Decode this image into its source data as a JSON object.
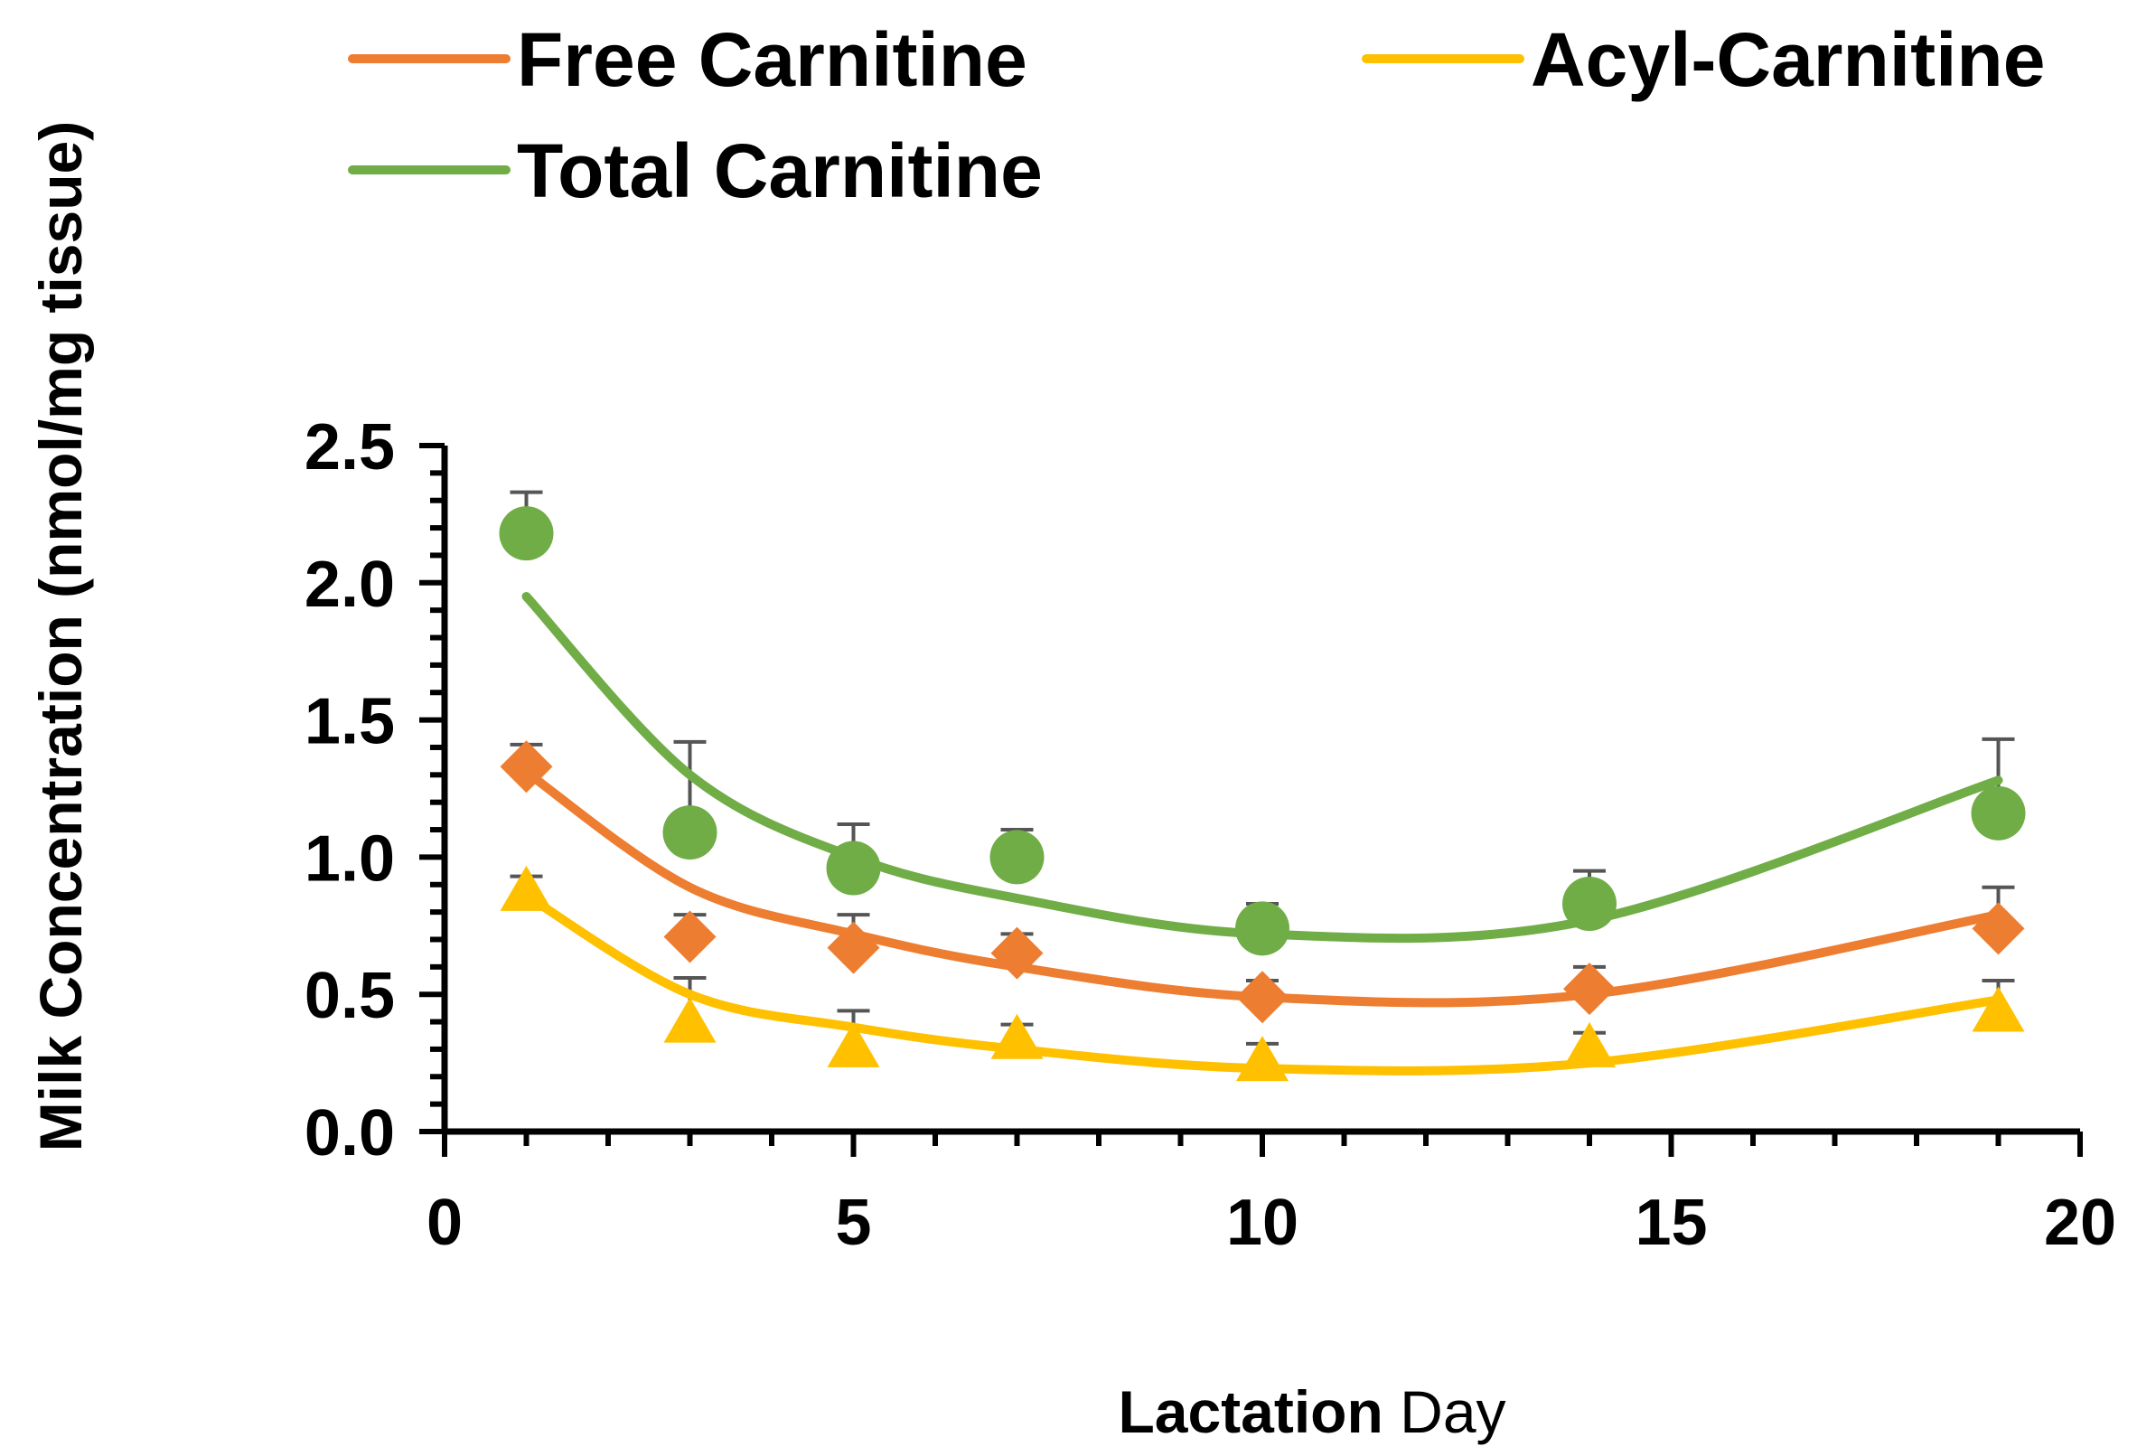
{
  "chart_data": {
    "type": "line",
    "title": "",
    "xlabel_bold": "Lactation",
    "xlabel_rest": " Day",
    "ylabel": "Milk Concentration (nmol/mg tissue)",
    "xlim": [
      0,
      20
    ],
    "ylim": [
      0,
      2.5
    ],
    "x_ticks": [
      "0",
      "5",
      "10",
      "15",
      "20"
    ],
    "y_ticks": [
      "0.0",
      "0.5",
      "1.0",
      "1.5",
      "2.0",
      "2.5"
    ],
    "legend_position": "top",
    "x": [
      1,
      3,
      5,
      7,
      10,
      14,
      19
    ],
    "series": [
      {
        "name": "Free Carnitine",
        "color": "#ED7D31",
        "marker": "diamond",
        "values": [
          1.33,
          0.71,
          0.67,
          0.65,
          0.49,
          0.52,
          0.74
        ],
        "error": [
          0.08,
          0.08,
          0.12,
          0.07,
          0.06,
          0.08,
          0.15
        ],
        "trend": [
          1.31,
          0.89,
          0.72,
          0.6,
          0.49,
          0.5,
          0.79
        ]
      },
      {
        "name": "Acyl-Carnitine",
        "color": "#FFC000",
        "marker": "triangle",
        "values": [
          0.87,
          0.39,
          0.3,
          0.33,
          0.25,
          0.3,
          0.43
        ],
        "error": [
          0.06,
          0.17,
          0.14,
          0.06,
          0.07,
          0.06,
          0.12
        ],
        "trend": [
          0.86,
          0.5,
          0.38,
          0.3,
          0.23,
          0.25,
          0.48
        ]
      },
      {
        "name": "Total Carnitine",
        "color": "#70AD47",
        "marker": "circle",
        "values": [
          2.18,
          1.09,
          0.96,
          1.0,
          0.74,
          0.83,
          1.16
        ],
        "error": [
          0.15,
          0.33,
          0.16,
          0.1,
          0.09,
          0.12,
          0.27
        ],
        "trend": [
          1.95,
          1.3,
          1.0,
          0.85,
          0.72,
          0.77,
          1.28
        ]
      }
    ]
  }
}
